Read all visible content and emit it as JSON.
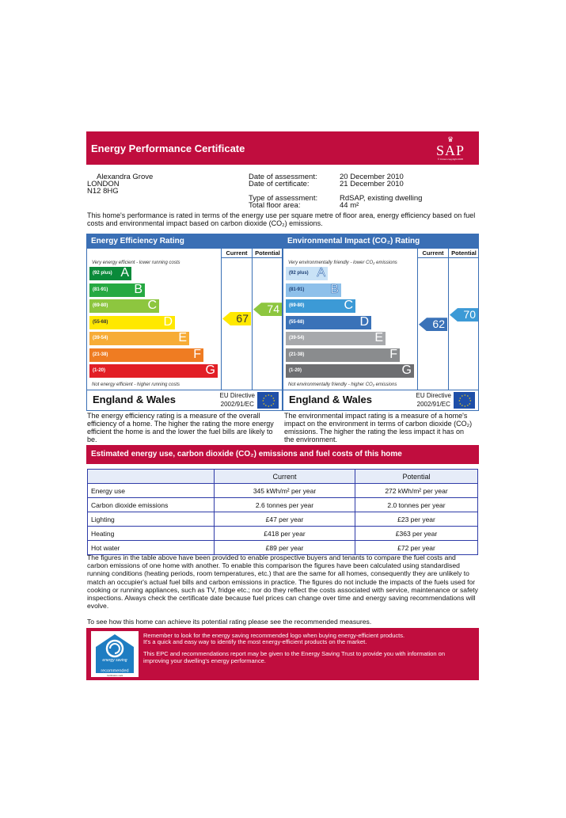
{
  "header": {
    "title": "Energy Performance Certificate",
    "logo_text": "SAP",
    "logo_small": "© Crown copyright 2005"
  },
  "address": [
    "Alexandra Grove",
    "LONDON",
    "N12 8HG"
  ],
  "details": [
    {
      "label": "Date of assessment:",
      "value": "20 December 2010"
    },
    {
      "label": "Date of certificate:",
      "value": "21 December 2010"
    },
    {
      "label": "Type of assessment:",
      "value": "RdSAP, existing dwelling"
    },
    {
      "label": "Total floor area:",
      "value": "44 m²"
    }
  ],
  "intro": "This home's performance is rated in terms of the energy use per square metre of floor area, energy efficiency based on fuel costs and environmental impact based on carbon dioxide (CO₂) emissions.",
  "energy": {
    "title": "Energy Efficiency Rating",
    "col_current": "Current",
    "col_potential": "Potential",
    "top_note": "Very energy efficient - lower running costs",
    "bottom_note": "Not energy efficient - higher running costs",
    "bands": [
      {
        "range": "(92 plus)",
        "letter": "A",
        "color": "#0a8a3a"
      },
      {
        "range": "(81-91)",
        "letter": "B",
        "color": "#26a942"
      },
      {
        "range": "(69-80)",
        "letter": "C",
        "color": "#8dc63f"
      },
      {
        "range": "(55-68)",
        "letter": "D",
        "color": "#ffe800"
      },
      {
        "range": "(39-54)",
        "letter": "E",
        "color": "#f7ac36"
      },
      {
        "range": "(21-38)",
        "letter": "F",
        "color": "#ef7c22"
      },
      {
        "range": "(1-20)",
        "letter": "G",
        "color": "#e21f26"
      }
    ],
    "current": "67",
    "potential": "74",
    "current_color": "#ffe800",
    "potential_color": "#8dc63f",
    "footer_region": "England & Wales",
    "footer_directive": [
      "EU Directive",
      "2002/91/EC"
    ],
    "description": "The energy efficiency rating is a measure of the overall efficiency of a home. The higher the rating the more energy efficient the home is and the lower the fuel bills are likely to be."
  },
  "environment": {
    "title": "Environmental Impact (CO₂) Rating",
    "col_current": "Current",
    "col_potential": "Potential",
    "top_note": "Very environmentally friendly - lower CO₂ emissions",
    "bottom_note": "Not environmentally friendly - higher CO₂ emissions",
    "bands": [
      {
        "range": "(92 plus)",
        "letter": "A",
        "color": "#c9e2f6"
      },
      {
        "range": "(81-91)",
        "letter": "B",
        "color": "#8ec0ea"
      },
      {
        "range": "(69-80)",
        "letter": "C",
        "color": "#3c9ad6"
      },
      {
        "range": "(55-68)",
        "letter": "D",
        "color": "#3a72b8"
      },
      {
        "range": "(39-54)",
        "letter": "E",
        "color": "#a7a9ac"
      },
      {
        "range": "(21-38)",
        "letter": "F",
        "color": "#8a8c8e"
      },
      {
        "range": "(1-20)",
        "letter": "G",
        "color": "#6d6e71"
      }
    ],
    "current": "62",
    "potential": "70",
    "current_color": "#3a72b8",
    "potential_color": "#3c9ad6",
    "footer_region": "England & Wales",
    "footer_directive": [
      "EU Directive",
      "2002/91/EC"
    ],
    "description": "The environmental impact rating is a measure of a home's impact on the environment in terms of carbon dioxide (CO₂) emissions. The higher the rating the less impact it has on the environment."
  },
  "estimated": {
    "title": "Estimated energy use, carbon dioxide (CO₂) emissions and fuel costs of this home",
    "columns": [
      "",
      "Current",
      "Potential"
    ],
    "rows": [
      [
        "Energy use",
        "345 kWh/m² per year",
        "272 kWh/m² per year"
      ],
      [
        "Carbon dioxide emissions",
        "2.6 tonnes per year",
        "2.0 tonnes per year"
      ],
      [
        "Lighting",
        "£47 per year",
        "£23 per year"
      ],
      [
        "Heating",
        "£418 per year",
        "£363 per year"
      ],
      [
        "Hot water",
        "£89 per year",
        "£72 per year"
      ]
    ]
  },
  "note": "The figures in the table above have been provided to enable prospective buyers and tenants to compare the fuel costs and carbon emissions of one home with another. To enable this comparison the figures have been calculated using standardised running conditions (heating periods, room temperatures, etc.) that are the same for all homes, consequently they are unlikely to match an occupier's actual fuel bills and carbon emissions in practice. The figures do not include the impacts of the fuels used for cooking or running appliances, such as TV, fridge etc.; nor do they reflect the costs associated with service, maintenance or safety inspections. Always check the certificate date because fuel prices can change over time and energy saving recommendations will evolve.",
  "see_recommendations": "To see how this home can achieve its potential rating please see the recommended measures.",
  "recommended": {
    "line1": "Remember to look for the energy saving recommended logo when buying energy-efficient products.",
    "line2": "It's a quick and easy way to identify the most energy-efficient products on the market.",
    "line3": "This EPC and recommendations report may be given to the Energy Saving Trust to provide you with information on improving your dwelling's energy performance.",
    "logo_label": "recommended",
    "logo_top": "energy saving",
    "logo_mark": "Certification mark"
  }
}
